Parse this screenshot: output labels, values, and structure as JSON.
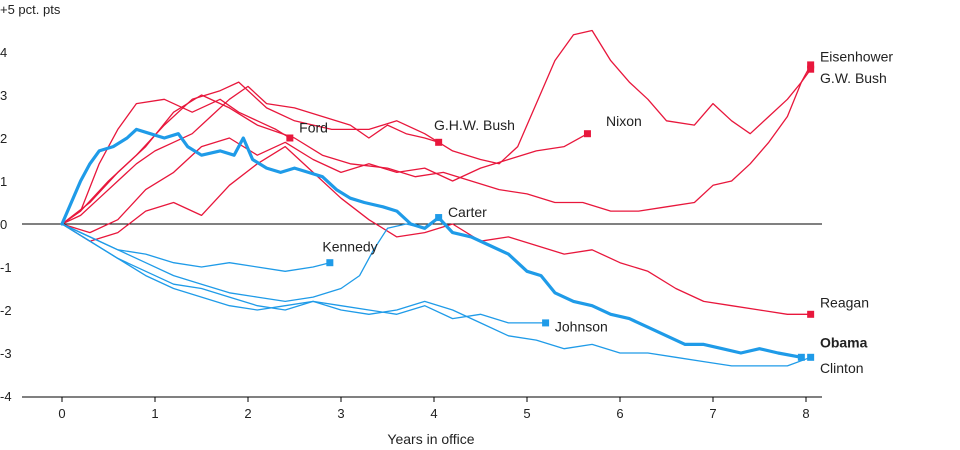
{
  "chart_data": {
    "type": "line",
    "xlabel": "Years in office",
    "ylabel_unit": "+5 pct. pts",
    "xlim": [
      0,
      8.1
    ],
    "ylim": [
      -4,
      5
    ],
    "x_ticks": [
      "0",
      "1",
      "2",
      "3",
      "4",
      "5",
      "6",
      "7",
      "8"
    ],
    "y_ticks": [
      "4",
      "3",
      "2",
      "1",
      "0",
      "-1",
      "-2",
      "-3",
      "-4"
    ],
    "colors": {
      "republican": "#e8173c",
      "democrat": "#1f9be8",
      "obama": "#1f9be8",
      "axis": "#000000"
    },
    "series": [
      {
        "name": "Eisenhower",
        "party": "republican",
        "end": [
          8.05,
          3.7
        ],
        "points": [
          [
            0,
            0
          ],
          [
            0.3,
            0.5
          ],
          [
            0.6,
            1.2
          ],
          [
            0.9,
            1.8
          ],
          [
            1.2,
            2.6
          ],
          [
            1.5,
            3.0
          ],
          [
            1.8,
            2.7
          ],
          [
            2.1,
            2.3
          ],
          [
            2.5,
            2.0
          ],
          [
            2.8,
            1.6
          ],
          [
            3.1,
            1.4
          ],
          [
            3.5,
            1.3
          ],
          [
            3.8,
            1.1
          ],
          [
            4.1,
            1.2
          ],
          [
            4.4,
            1.0
          ],
          [
            4.7,
            0.8
          ],
          [
            5.0,
            0.7
          ],
          [
            5.3,
            0.5
          ],
          [
            5.6,
            0.5
          ],
          [
            5.9,
            0.3
          ],
          [
            6.2,
            0.3
          ],
          [
            6.5,
            0.4
          ],
          [
            6.8,
            0.5
          ],
          [
            7.0,
            0.9
          ],
          [
            7.2,
            1.0
          ],
          [
            7.4,
            1.4
          ],
          [
            7.6,
            1.9
          ],
          [
            7.8,
            2.5
          ],
          [
            7.95,
            3.3
          ],
          [
            8.05,
            3.7
          ]
        ]
      },
      {
        "name": "G.W. Bush",
        "party": "republican",
        "end": [
          8.05,
          3.6
        ],
        "points": [
          [
            0,
            0
          ],
          [
            0.2,
            0.3
          ],
          [
            0.5,
            1.0
          ],
          [
            0.8,
            1.6
          ],
          [
            1.1,
            2.3
          ],
          [
            1.4,
            2.9
          ],
          [
            1.7,
            3.1
          ],
          [
            1.9,
            3.3
          ],
          [
            2.2,
            2.7
          ],
          [
            2.5,
            2.4
          ],
          [
            2.9,
            2.2
          ],
          [
            3.3,
            2.2
          ],
          [
            3.6,
            2.4
          ],
          [
            3.9,
            2.1
          ],
          [
            4.2,
            1.7
          ],
          [
            4.5,
            1.5
          ],
          [
            4.7,
            1.4
          ],
          [
            4.9,
            1.8
          ],
          [
            5.1,
            2.8
          ],
          [
            5.3,
            3.8
          ],
          [
            5.5,
            4.4
          ],
          [
            5.7,
            4.5
          ],
          [
            5.9,
            3.8
          ],
          [
            6.1,
            3.3
          ],
          [
            6.3,
            2.9
          ],
          [
            6.5,
            2.4
          ],
          [
            6.8,
            2.3
          ],
          [
            7.0,
            2.8
          ],
          [
            7.2,
            2.4
          ],
          [
            7.4,
            2.1
          ],
          [
            7.6,
            2.5
          ],
          [
            7.8,
            2.9
          ],
          [
            7.95,
            3.3
          ],
          [
            8.05,
            3.6
          ]
        ]
      },
      {
        "name": "Ford",
        "party": "republican",
        "end": [
          2.45,
          2.0
        ],
        "points": [
          [
            0,
            0
          ],
          [
            0.2,
            0.3
          ],
          [
            0.4,
            1.4
          ],
          [
            0.6,
            2.2
          ],
          [
            0.8,
            2.8
          ],
          [
            1.1,
            2.9
          ],
          [
            1.4,
            2.6
          ],
          [
            1.7,
            2.9
          ],
          [
            1.9,
            2.6
          ],
          [
            2.1,
            2.4
          ],
          [
            2.3,
            2.2
          ],
          [
            2.45,
            2.0
          ]
        ]
      },
      {
        "name": "G.H.W. Bush",
        "party": "republican",
        "end": [
          4.05,
          1.9
        ],
        "points": [
          [
            0,
            0
          ],
          [
            0.2,
            0.2
          ],
          [
            0.4,
            0.6
          ],
          [
            0.6,
            1.0
          ],
          [
            0.8,
            1.4
          ],
          [
            1.0,
            1.7
          ],
          [
            1.2,
            1.9
          ],
          [
            1.4,
            2.1
          ],
          [
            1.6,
            2.5
          ],
          [
            1.8,
            2.9
          ],
          [
            2.0,
            3.2
          ],
          [
            2.2,
            2.8
          ],
          [
            2.5,
            2.7
          ],
          [
            2.8,
            2.5
          ],
          [
            3.1,
            2.3
          ],
          [
            3.3,
            2.0
          ],
          [
            3.5,
            2.3
          ],
          [
            3.7,
            2.1
          ],
          [
            3.9,
            2.0
          ],
          [
            4.05,
            1.9
          ]
        ]
      },
      {
        "name": "Nixon",
        "party": "republican",
        "end": [
          5.65,
          2.1
        ],
        "points": [
          [
            0,
            0
          ],
          [
            0.3,
            -0.2
          ],
          [
            0.6,
            0.1
          ],
          [
            0.9,
            0.8
          ],
          [
            1.2,
            1.2
          ],
          [
            1.5,
            1.8
          ],
          [
            1.8,
            2.0
          ],
          [
            2.1,
            1.6
          ],
          [
            2.4,
            1.9
          ],
          [
            2.7,
            1.5
          ],
          [
            3.0,
            1.2
          ],
          [
            3.3,
            1.4
          ],
          [
            3.6,
            1.2
          ],
          [
            3.9,
            1.3
          ],
          [
            4.2,
            1.0
          ],
          [
            4.5,
            1.3
          ],
          [
            4.8,
            1.5
          ],
          [
            5.1,
            1.7
          ],
          [
            5.4,
            1.8
          ],
          [
            5.65,
            2.1
          ]
        ]
      },
      {
        "name": "Reagan",
        "party": "republican",
        "end": [
          8.05,
          -2.1
        ],
        "points": [
          [
            0,
            0
          ],
          [
            0.3,
            -0.4
          ],
          [
            0.6,
            -0.2
          ],
          [
            0.9,
            0.3
          ],
          [
            1.2,
            0.5
          ],
          [
            1.5,
            0.2
          ],
          [
            1.8,
            0.9
          ],
          [
            2.1,
            1.4
          ],
          [
            2.4,
            1.8
          ],
          [
            2.7,
            1.2
          ],
          [
            3.0,
            0.6
          ],
          [
            3.3,
            0.1
          ],
          [
            3.6,
            -0.3
          ],
          [
            3.9,
            -0.2
          ],
          [
            4.2,
            0.0
          ],
          [
            4.5,
            -0.4
          ],
          [
            4.8,
            -0.3
          ],
          [
            5.1,
            -0.5
          ],
          [
            5.4,
            -0.7
          ],
          [
            5.7,
            -0.6
          ],
          [
            6.0,
            -0.9
          ],
          [
            6.3,
            -1.1
          ],
          [
            6.6,
            -1.5
          ],
          [
            6.9,
            -1.8
          ],
          [
            7.2,
            -1.9
          ],
          [
            7.5,
            -2.0
          ],
          [
            7.8,
            -2.1
          ],
          [
            8.05,
            -2.1
          ]
        ]
      },
      {
        "name": "Kennedy",
        "party": "democrat",
        "end": [
          2.88,
          -0.9
        ],
        "points": [
          [
            0,
            0
          ],
          [
            0.3,
            -0.3
          ],
          [
            0.6,
            -0.6
          ],
          [
            0.9,
            -0.7
          ],
          [
            1.2,
            -0.9
          ],
          [
            1.5,
            -1.0
          ],
          [
            1.8,
            -0.9
          ],
          [
            2.1,
            -1.0
          ],
          [
            2.4,
            -1.1
          ],
          [
            2.7,
            -1.0
          ],
          [
            2.88,
            -0.9
          ]
        ]
      },
      {
        "name": "Johnson",
        "party": "democrat",
        "end": [
          5.2,
          -2.3
        ],
        "points": [
          [
            0,
            0
          ],
          [
            0.3,
            -0.4
          ],
          [
            0.6,
            -0.8
          ],
          [
            0.9,
            -1.1
          ],
          [
            1.2,
            -1.4
          ],
          [
            1.5,
            -1.5
          ],
          [
            1.8,
            -1.7
          ],
          [
            2.1,
            -1.9
          ],
          [
            2.4,
            -2.0
          ],
          [
            2.7,
            -1.8
          ],
          [
            3.0,
            -1.9
          ],
          [
            3.3,
            -2.0
          ],
          [
            3.6,
            -2.1
          ],
          [
            3.9,
            -1.9
          ],
          [
            4.2,
            -2.2
          ],
          [
            4.5,
            -2.1
          ],
          [
            4.8,
            -2.3
          ],
          [
            5.0,
            -2.3
          ],
          [
            5.2,
            -2.3
          ]
        ]
      },
      {
        "name": "Carter",
        "party": "democrat",
        "end": [
          4.05,
          0.15
        ],
        "points": [
          [
            0,
            0
          ],
          [
            0.3,
            -0.3
          ],
          [
            0.6,
            -0.6
          ],
          [
            0.9,
            -0.9
          ],
          [
            1.2,
            -1.2
          ],
          [
            1.5,
            -1.4
          ],
          [
            1.8,
            -1.6
          ],
          [
            2.1,
            -1.7
          ],
          [
            2.4,
            -1.8
          ],
          [
            2.7,
            -1.7
          ],
          [
            3.0,
            -1.5
          ],
          [
            3.2,
            -1.2
          ],
          [
            3.35,
            -0.6
          ],
          [
            3.5,
            -0.1
          ],
          [
            3.7,
            0.0
          ],
          [
            3.9,
            -0.1
          ],
          [
            4.05,
            0.15
          ]
        ]
      },
      {
        "name": "Clinton",
        "party": "democrat",
        "end": [
          8.05,
          -3.1
        ],
        "points": [
          [
            0,
            0
          ],
          [
            0.3,
            -0.4
          ],
          [
            0.6,
            -0.8
          ],
          [
            0.9,
            -1.2
          ],
          [
            1.2,
            -1.5
          ],
          [
            1.5,
            -1.7
          ],
          [
            1.8,
            -1.9
          ],
          [
            2.1,
            -2.0
          ],
          [
            2.4,
            -1.9
          ],
          [
            2.7,
            -1.8
          ],
          [
            3.0,
            -2.0
          ],
          [
            3.3,
            -2.1
          ],
          [
            3.6,
            -2.0
          ],
          [
            3.9,
            -1.8
          ],
          [
            4.2,
            -2.0
          ],
          [
            4.5,
            -2.3
          ],
          [
            4.8,
            -2.6
          ],
          [
            5.1,
            -2.7
          ],
          [
            5.4,
            -2.9
          ],
          [
            5.7,
            -2.8
          ],
          [
            6.0,
            -3.0
          ],
          [
            6.3,
            -3.0
          ],
          [
            6.6,
            -3.1
          ],
          [
            6.9,
            -3.2
          ],
          [
            7.2,
            -3.3
          ],
          [
            7.5,
            -3.3
          ],
          [
            7.8,
            -3.3
          ],
          [
            8.05,
            -3.1
          ]
        ]
      },
      {
        "name": "Obama",
        "party": "obama",
        "end": [
          7.95,
          -3.1
        ],
        "bold": true,
        "points": [
          [
            0,
            0
          ],
          [
            0.1,
            0.5
          ],
          [
            0.2,
            1.0
          ],
          [
            0.3,
            1.4
          ],
          [
            0.4,
            1.7
          ],
          [
            0.55,
            1.8
          ],
          [
            0.7,
            2.0
          ],
          [
            0.8,
            2.2
          ],
          [
            0.95,
            2.1
          ],
          [
            1.1,
            2.0
          ],
          [
            1.25,
            2.1
          ],
          [
            1.35,
            1.8
          ],
          [
            1.5,
            1.6
          ],
          [
            1.7,
            1.7
          ],
          [
            1.85,
            1.6
          ],
          [
            1.95,
            2.0
          ],
          [
            2.05,
            1.5
          ],
          [
            2.2,
            1.3
          ],
          [
            2.35,
            1.2
          ],
          [
            2.5,
            1.3
          ],
          [
            2.65,
            1.2
          ],
          [
            2.8,
            1.1
          ],
          [
            2.95,
            0.8
          ],
          [
            3.1,
            0.6
          ],
          [
            3.25,
            0.5
          ],
          [
            3.45,
            0.4
          ],
          [
            3.6,
            0.3
          ],
          [
            3.75,
            0.0
          ],
          [
            3.9,
            -0.1
          ],
          [
            4.05,
            0.15
          ],
          [
            4.2,
            -0.2
          ],
          [
            4.4,
            -0.3
          ],
          [
            4.6,
            -0.5
          ],
          [
            4.8,
            -0.7
          ],
          [
            5.0,
            -1.1
          ],
          [
            5.15,
            -1.2
          ],
          [
            5.3,
            -1.6
          ],
          [
            5.5,
            -1.8
          ],
          [
            5.7,
            -1.9
          ],
          [
            5.9,
            -2.1
          ],
          [
            6.1,
            -2.2
          ],
          [
            6.3,
            -2.4
          ],
          [
            6.5,
            -2.6
          ],
          [
            6.7,
            -2.8
          ],
          [
            6.9,
            -2.8
          ],
          [
            7.1,
            -2.9
          ],
          [
            7.3,
            -3.0
          ],
          [
            7.5,
            -2.9
          ],
          [
            7.7,
            -3.0
          ],
          [
            7.95,
            -3.1
          ]
        ]
      }
    ],
    "labels": [
      {
        "text": "Eisenhower",
        "x": 8.15,
        "y": 3.9
      },
      {
        "text": "G.W. Bush",
        "x": 8.15,
        "y": 3.4
      },
      {
        "text": "Ford",
        "x": 2.55,
        "y": 2.25
      },
      {
        "text": "G.H.W. Bush",
        "x": 4.0,
        "y": 2.3
      },
      {
        "text": "Nixon",
        "x": 5.85,
        "y": 2.4
      },
      {
        "text": "Carter",
        "x": 4.15,
        "y": 0.28
      },
      {
        "text": "Kennedy",
        "x": 2.8,
        "y": -0.52
      },
      {
        "text": "Johnson",
        "x": 5.3,
        "y": -2.38
      },
      {
        "text": "Reagan",
        "x": 8.15,
        "y": -1.82
      },
      {
        "text": "Obama",
        "x": 8.15,
        "y": -2.75,
        "bold": true
      },
      {
        "text": "Clinton",
        "x": 8.15,
        "y": -3.35
      }
    ]
  }
}
